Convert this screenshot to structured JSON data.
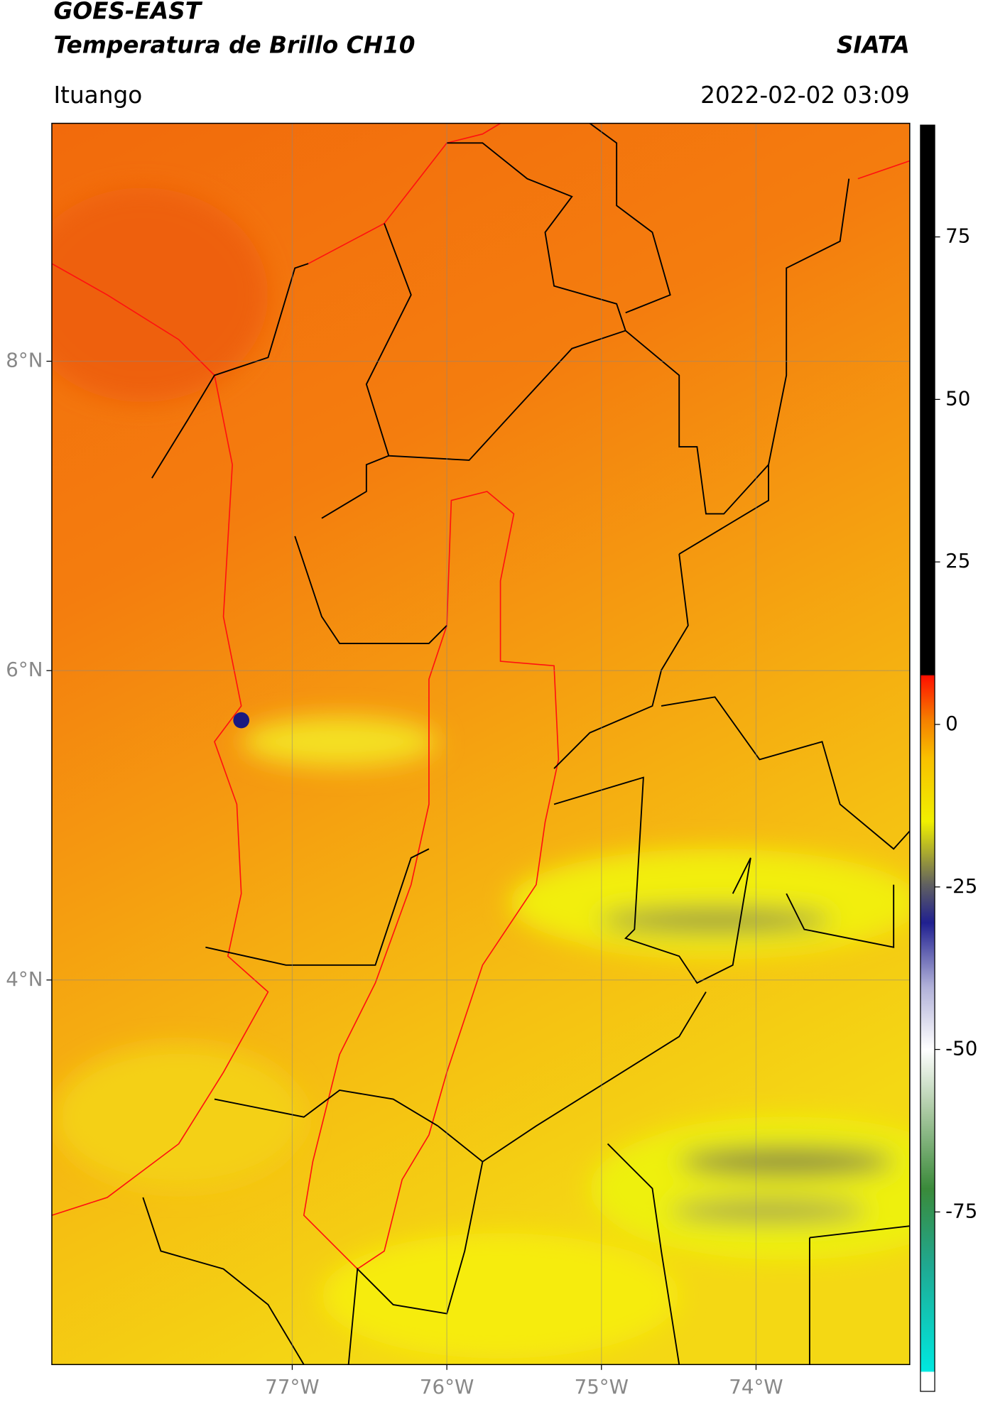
{
  "chart_data": {
    "type": "map",
    "title": "GOES-EAST",
    "subtitle": "Temperatura de Brillo CH10",
    "source": "SIATA",
    "location": "Ituango",
    "datetime": "2022-02-02 03:09",
    "xlim": [
      -78.555,
      -73.006
    ],
    "ylim": [
      1.514,
      9.538
    ],
    "xticks": [
      {
        "value": -77,
        "label": "77°W"
      },
      {
        "value": -76,
        "label": "76°W"
      },
      {
        "value": -75,
        "label": "75°W"
      },
      {
        "value": -74,
        "label": "74°W"
      }
    ],
    "yticks": [
      {
        "value": 8,
        "label": "8°N"
      },
      {
        "value": 6,
        "label": "6°N"
      },
      {
        "value": 4,
        "label": "4°N"
      }
    ],
    "grid": true,
    "colorbar": {
      "lim": [
        -102.6,
        92.2
      ],
      "ticks": [
        -75,
        -50,
        -25,
        0,
        25,
        50,
        75
      ]
    }
  }
}
